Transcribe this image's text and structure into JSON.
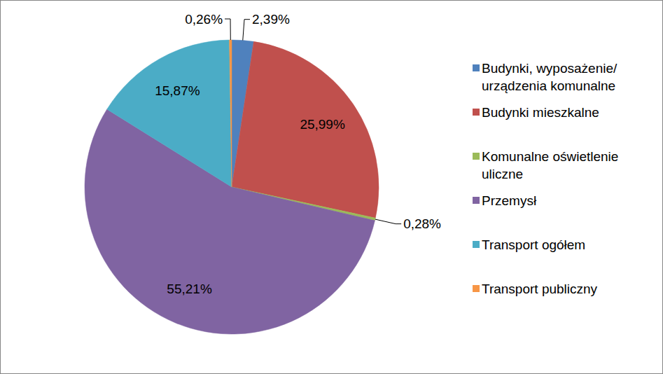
{
  "chart_data": {
    "type": "pie",
    "categories": [
      "Budynki, wyposażenie/ urządzenia komunalne",
      "Budynki mieszkalne",
      "Komunalne oświetlenie uliczne",
      "Przemysł",
      "Transport ogółem",
      "Transport publiczny"
    ],
    "values": [
      2.39,
      25.99,
      0.28,
      55.21,
      15.87,
      0.26
    ],
    "value_labels": [
      "2,39%",
      "25,99%",
      "0,28%",
      "55,21%",
      "15,87%",
      "0,26%"
    ],
    "colors": [
      "#4f81bd",
      "#c0504d",
      "#9bbb59",
      "#8064a2",
      "#4bacc6",
      "#f79646"
    ],
    "data_labels": true,
    "legend": "right"
  }
}
